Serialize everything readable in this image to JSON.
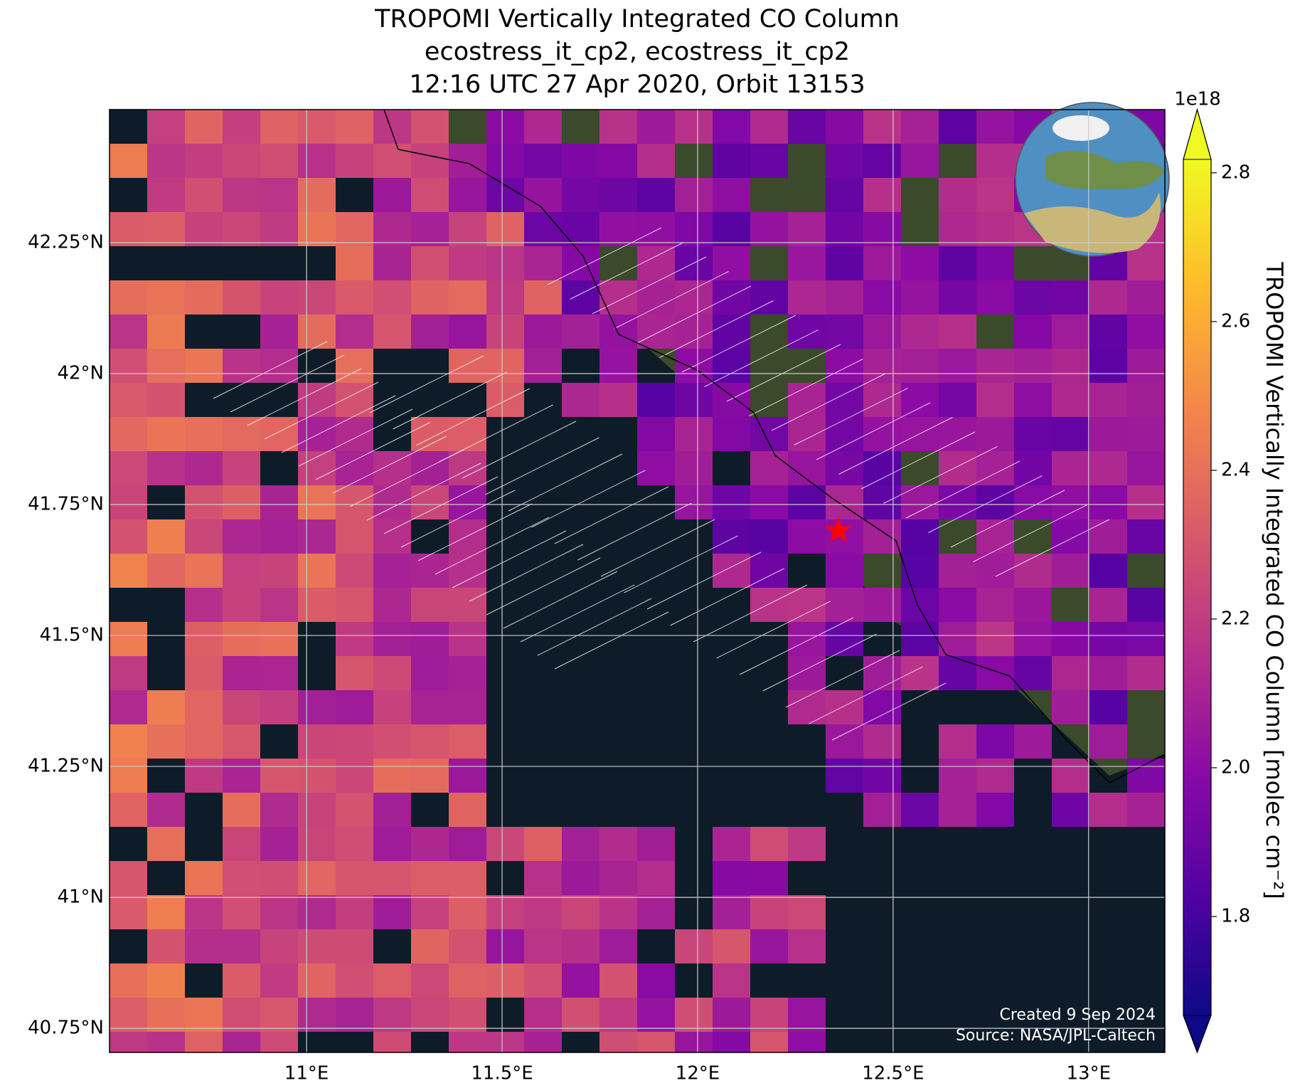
{
  "chart_data": {
    "type": "map",
    "title": [
      "TROPOMI Vertically Integrated CO Column",
      "ecostress_it_cp2, ecostress_it_cp2",
      "12:16 UTC 27 Apr 2020, Orbit 13153"
    ],
    "xlim": [
      10.496,
      13.195
    ],
    "ylim": [
      40.704,
      42.504
    ],
    "xticks": [
      {
        "value": 11,
        "label": "11°E"
      },
      {
        "value": 11.5,
        "label": "11.5°E"
      },
      {
        "value": 12,
        "label": "12°E"
      },
      {
        "value": 12.5,
        "label": "12.5°E"
      },
      {
        "value": 13,
        "label": "13°E"
      }
    ],
    "yticks": [
      {
        "value": 40.75,
        "label": "40.75°N"
      },
      {
        "value": 41,
        "label": "41°N"
      },
      {
        "value": 41.25,
        "label": "41.25°N"
      },
      {
        "value": 41.5,
        "label": "41.5°N"
      },
      {
        "value": 41.75,
        "label": "41.75°N"
      },
      {
        "value": 42,
        "label": "42°N"
      },
      {
        "value": 42.25,
        "label": "42.25°N"
      }
    ],
    "grid": true,
    "colormap": [
      "#0d0887",
      "#5302a3",
      "#8b0aa5",
      "#b83289",
      "#db5c68",
      "#f48849",
      "#febd2a",
      "#f0f921"
    ],
    "clim": [
      1.667,
      2.818
    ],
    "cticks": [
      1.8,
      {
        "value": 2,
        "label": "2.0"
      },
      2.2,
      2.4,
      2.6,
      2.8
    ],
    "colorbar_exponent": "1e18",
    "colorbar_label": "TROPOMI Vertically Integrated CO Column [molec cm⁻²]",
    "marker": {
      "lon": 12.36,
      "lat": 41.7,
      "color": "#ff0000"
    },
    "footer": [
      "Created 9 Sep 2024",
      "Source: NASA/JPL-Caltech"
    ]
  }
}
